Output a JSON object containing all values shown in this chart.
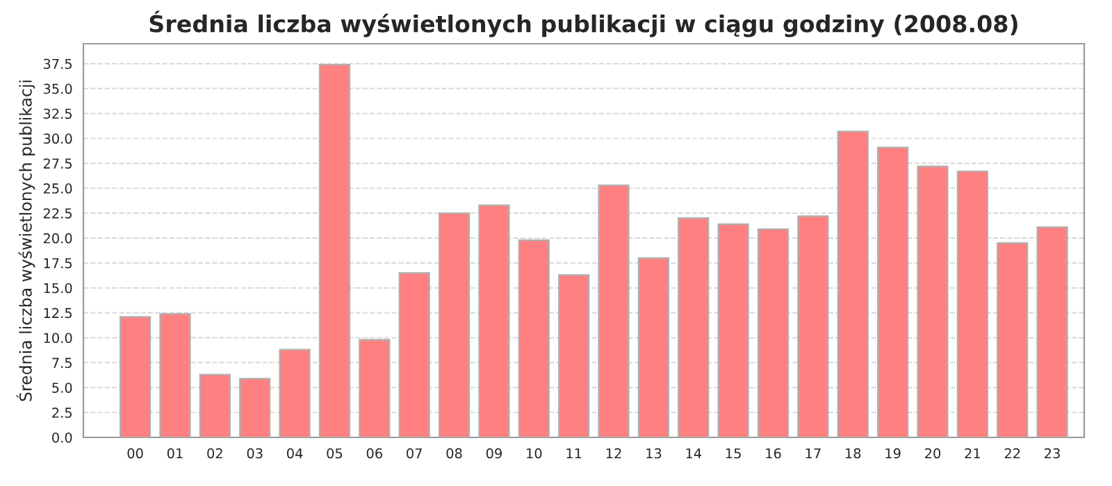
{
  "chart_data": {
    "type": "bar",
    "title": "Średnia liczba wyświetlonych publikacji w ciągu godziny (2008.08)",
    "ylabel": "Średnia liczba wyświetlonych publikacji",
    "categories": [
      "00",
      "01",
      "02",
      "03",
      "04",
      "05",
      "06",
      "07",
      "08",
      "09",
      "10",
      "11",
      "12",
      "13",
      "14",
      "15",
      "16",
      "17",
      "18",
      "19",
      "20",
      "21",
      "22",
      "23"
    ],
    "values": [
      12.1,
      12.4,
      6.3,
      5.9,
      8.8,
      37.4,
      9.8,
      16.5,
      22.5,
      23.3,
      19.8,
      16.3,
      25.3,
      18.0,
      22.0,
      21.4,
      20.9,
      22.2,
      30.7,
      29.1,
      27.2,
      26.7,
      19.5,
      21.1
    ],
    "color": "#ff8080",
    "ylim": [
      0,
      39.5
    ],
    "yticks": [
      {
        "value": 0,
        "label": "0.0"
      },
      {
        "value": 2.5,
        "label": "2.5"
      },
      {
        "value": 5,
        "label": "5.0"
      },
      {
        "value": 7.5,
        "label": "7.5"
      },
      {
        "value": 10,
        "label": "10.0"
      },
      {
        "value": 12.5,
        "label": "12.5"
      },
      {
        "value": 15,
        "label": "15.0"
      },
      {
        "value": 17.5,
        "label": "17.5"
      },
      {
        "value": 20,
        "label": "20.0"
      },
      {
        "value": 22.5,
        "label": "22.5"
      },
      {
        "value": 25,
        "label": "25.0"
      },
      {
        "value": 27.5,
        "label": "27.5"
      },
      {
        "value": 30,
        "label": "30.0"
      },
      {
        "value": 32.5,
        "label": "32.5"
      },
      {
        "value": 35,
        "label": "35.0"
      },
      {
        "value": 37.5,
        "label": "37.5"
      }
    ],
    "grid": "y"
  }
}
